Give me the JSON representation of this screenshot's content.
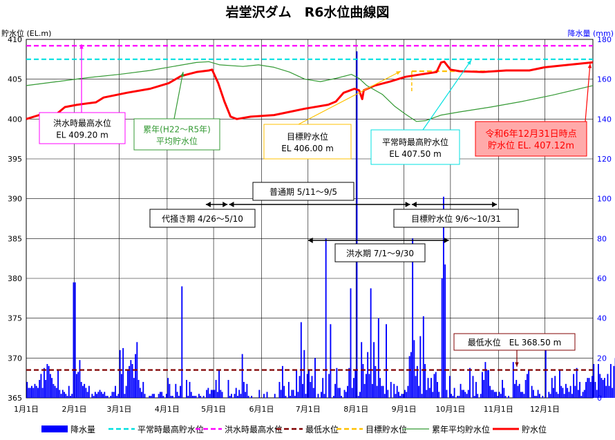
{
  "chart_data": {
    "type": "line",
    "title": "岩堂沢ダム　R6水位曲線図",
    "ylabel_left": "貯水位 (EL.m)",
    "ylabel_right": "降水量 (mm)",
    "ylim_left": [
      365,
      410
    ],
    "ylim_right": [
      0,
      180
    ],
    "yticks_left": [
      "410",
      "405",
      "400",
      "395",
      "390",
      "385",
      "380",
      "375",
      "370",
      "365"
    ],
    "yticks_right": [
      "180",
      "160",
      "140",
      "120",
      "100",
      "80",
      "60",
      "40",
      "20",
      "0"
    ],
    "month_labels": [
      "1月1日",
      "2月1日",
      "3月1日",
      "4月1日",
      "5月1日",
      "6月1日",
      "7月1日",
      "8月1日",
      "9月1日",
      "10月1日",
      "11月1日",
      "12月1日"
    ],
    "month_start_days": [
      0,
      31,
      60,
      91,
      121,
      152,
      182,
      213,
      244,
      274,
      305,
      335
    ],
    "total_days": 366,
    "reference_lines": [
      {
        "name": "平常時最高貯水位",
        "value": 407.5,
        "color": "#00e0e0"
      },
      {
        "name": "洪水時最高水位",
        "value": 409.2,
        "color": "#ff00ff"
      },
      {
        "name": "最低水位",
        "value": 368.5,
        "color": "#800000"
      }
    ],
    "target_level": {
      "name": "目標貯水位",
      "value": 406.0,
      "start_day": 249,
      "end_day": 304,
      "color": "#ffc000"
    },
    "series": [
      {
        "name": "貯水位",
        "color": "#ff0000",
        "points": [
          [
            0,
            400
          ],
          [
            10,
            400.6
          ],
          [
            20,
            400.7
          ],
          [
            25,
            401.5
          ],
          [
            33,
            401.8
          ],
          [
            45,
            402.1
          ],
          [
            50,
            402.7
          ],
          [
            65,
            403.3
          ],
          [
            80,
            403.8
          ],
          [
            92,
            404.5
          ],
          [
            100,
            405.4
          ],
          [
            110,
            405.9
          ],
          [
            118,
            406.1
          ],
          [
            120,
            406.2
          ],
          [
            124,
            404.5
          ],
          [
            128,
            402.2
          ],
          [
            132,
            400.3
          ],
          [
            136,
            400.0
          ],
          [
            145,
            400.3
          ],
          [
            160,
            400.5
          ],
          [
            170,
            400.9
          ],
          [
            180,
            401.3
          ],
          [
            195,
            401.8
          ],
          [
            200,
            402.2
          ],
          [
            205,
            403.3
          ],
          [
            212,
            403.8
          ],
          [
            215,
            403.6
          ],
          [
            217,
            402.5
          ],
          [
            218,
            403.6
          ],
          [
            225,
            404.2
          ],
          [
            235,
            404.7
          ],
          [
            245,
            405.3
          ],
          [
            255,
            405.6
          ],
          [
            265,
            405.9
          ],
          [
            268,
            407.1
          ],
          [
            270,
            407.2
          ],
          [
            274,
            406.2
          ],
          [
            280,
            406.0
          ],
          [
            295,
            405.9
          ],
          [
            310,
            406.1
          ],
          [
            325,
            406.1
          ],
          [
            335,
            406.5
          ],
          [
            350,
            406.8
          ],
          [
            366,
            407.12
          ]
        ]
      },
      {
        "name": "累年平均貯水位",
        "color": "#339933",
        "points": [
          [
            0,
            404.2
          ],
          [
            20,
            404.7
          ],
          [
            40,
            405.2
          ],
          [
            60,
            405.6
          ],
          [
            80,
            406.1
          ],
          [
            95,
            406.6
          ],
          [
            110,
            407.1
          ],
          [
            118,
            407.2
          ],
          [
            125,
            406.8
          ],
          [
            140,
            406.6
          ],
          [
            150,
            406.8
          ],
          [
            160,
            406.5
          ],
          [
            170,
            405.9
          ],
          [
            180,
            405.0
          ],
          [
            190,
            404.7
          ],
          [
            200,
            405.1
          ],
          [
            210,
            405.6
          ],
          [
            215,
            405.1
          ],
          [
            220,
            404.2
          ],
          [
            230,
            403.1
          ],
          [
            238,
            401.6
          ],
          [
            245,
            400.6
          ],
          [
            252,
            399.7
          ],
          [
            258,
            399.8
          ],
          [
            268,
            400.5
          ],
          [
            280,
            400.9
          ],
          [
            300,
            401.5
          ],
          [
            320,
            402.2
          ],
          [
            340,
            403.0
          ],
          [
            366,
            404.2
          ]
        ]
      }
    ],
    "rainfall": {
      "name": "降水量",
      "color": "#0000ff",
      "values": [
        8,
        5,
        5,
        6,
        5,
        7,
        6,
        5,
        9,
        12,
        5,
        15,
        9,
        17,
        16,
        12,
        10,
        7,
        6,
        5,
        14,
        4,
        2,
        4,
        3,
        2,
        1,
        6,
        1,
        2,
        58,
        10,
        12,
        13,
        19,
        8,
        6,
        7,
        5,
        3,
        6,
        0,
        2,
        1,
        3,
        2,
        3,
        4,
        3,
        2,
        3,
        1,
        1,
        0,
        1,
        3,
        3,
        6,
        1,
        2,
        12,
        12,
        10,
        2,
        6,
        14,
        16,
        19,
        17,
        10,
        22,
        28,
        9,
        5,
        3,
        8,
        2,
        0,
        0,
        1,
        1,
        2,
        2,
        0,
        0,
        2,
        3,
        3,
        1,
        0,
        2,
        10,
        7,
        1,
        1,
        0,
        7,
        3,
        1,
        6,
        0,
        0,
        0,
        9,
        1,
        8,
        3,
        1,
        1,
        1,
        0,
        2,
        1,
        0,
        1,
        0,
        4,
        5,
        2,
        4,
        4,
        4,
        9,
        3,
        14,
        4,
        3,
        0,
        0,
        0,
        9,
        1,
        2,
        0,
        2,
        5,
        1,
        4,
        2,
        22,
        8,
        3,
        7,
        1,
        0,
        1,
        0,
        0,
        0,
        0,
        4,
        0,
        0,
        2,
        0,
        3,
        0,
        0,
        0,
        0,
        2,
        0,
        0,
        8,
        4,
        16,
        6,
        1,
        0,
        8,
        1,
        4,
        4,
        1,
        14,
        3,
        11,
        38,
        7,
        24,
        2,
        12,
        14,
        8,
        11,
        5,
        20,
        0,
        2,
        0,
        3,
        10,
        2,
        0,
        0,
        12,
        3,
        0,
        1,
        7,
        15,
        5,
        5,
        1,
        0,
        4,
        3,
        6,
        15,
        37,
        5,
        10,
        14,
        5,
        1,
        3,
        28,
        17,
        7,
        12,
        23,
        12,
        55,
        7,
        28,
        16,
        6,
        40,
        10,
        6,
        6,
        2,
        23,
        4,
        0,
        8,
        0,
        7,
        2,
        6,
        3,
        1,
        2,
        2,
        4,
        3,
        6,
        21,
        23,
        80,
        29,
        11,
        16,
        6,
        31,
        2,
        41,
        17,
        4,
        10,
        5,
        10,
        3,
        12,
        13,
        8,
        3,
        0,
        4,
        0,
        0,
        4,
        0,
        11,
        2,
        1,
        5,
        0,
        1,
        1,
        7,
        4,
        4,
        3,
        2,
        4,
        15,
        0,
        11,
        1,
        8,
        2,
        0,
        2,
        13,
        9,
        18,
        14,
        14,
        6,
        4,
        4,
        3,
        3,
        1,
        3,
        2,
        9,
        5,
        1,
        0,
        1,
        0,
        0,
        18,
        7,
        9,
        6,
        7,
        3,
        3,
        2,
        9,
        12,
        14,
        0,
        6,
        4,
        1,
        1,
        4,
        2,
        0,
        1,
        0,
        0,
        0,
        3,
        2,
        10,
        5,
        11,
        3,
        2,
        14,
        6,
        5,
        2,
        7,
        5,
        3,
        6,
        2,
        12,
        6,
        15,
        4,
        8,
        1,
        3,
        4,
        8,
        10,
        10,
        8,
        11,
        17,
        8,
        4,
        17,
        12,
        10,
        9,
        10,
        6,
        12,
        6,
        17,
        5,
        16,
        20,
        9,
        6,
        4,
        18,
        23,
        10,
        18,
        17,
        10
      ]
    },
    "rain_spikes": [
      {
        "day": 31,
        "value": 58
      },
      {
        "day": 60,
        "value": 24
      },
      {
        "day": 62,
        "value": 25
      },
      {
        "day": 100,
        "value": 56
      },
      {
        "day": 193,
        "value": 80
      },
      {
        "day": 196,
        "value": 37
      },
      {
        "day": 209,
        "value": 55
      },
      {
        "day": 213,
        "value": 174
      },
      {
        "day": 232,
        "value": 37
      },
      {
        "day": 268,
        "value": 60
      },
      {
        "day": 269,
        "value": 101
      },
      {
        "day": 270,
        "value": 67
      },
      {
        "day": 335,
        "value": 30
      }
    ],
    "annotations": {
      "flood_max": {
        "line1": "洪水時最高水位",
        "line2": "EL 409.20 m"
      },
      "avg_level": {
        "line1": "累年(H22～R5年)",
        "line2": "平均貯水位"
      },
      "target": {
        "line1": "目標貯水位",
        "line2": "EL 406.00 m"
      },
      "normal_max": {
        "line1": "平常時最高貯水位",
        "line2": "EL 407.50 m"
      },
      "current": {
        "line1": "令和6年12月31日時点",
        "line2": "貯水位 EL. 407.12m"
      },
      "min_level": {
        "line1": "最低水位　EL 368.50 m"
      }
    },
    "periods": [
      {
        "name": "普通期 5/11～9/5",
        "start_day": 131,
        "end_day": 248
      },
      {
        "name": "代掻き期 4/26～5/10",
        "start_day": 116,
        "end_day": 130
      },
      {
        "name": "目標貯水位 9/6～10/31",
        "start_day": 249,
        "end_day": 304
      },
      {
        "name": "洪水期 7/1～9/30",
        "start_day": 182,
        "end_day": 273
      }
    ],
    "legend": [
      {
        "label": "降水量",
        "kind": "bar",
        "color": "#0000ff"
      },
      {
        "label": "平常時最高貯水位",
        "kind": "dash",
        "color": "#00e0e0"
      },
      {
        "label": "洪水時最高水位",
        "kind": "dash",
        "color": "#ff00ff"
      },
      {
        "label": "最低水位",
        "kind": "dash",
        "color": "#800000"
      },
      {
        "label": "目標貯水位",
        "kind": "dash",
        "color": "#ffc000"
      },
      {
        "label": "累年平均貯水位",
        "kind": "line",
        "color": "#339933"
      },
      {
        "label": "貯水位",
        "kind": "thick",
        "color": "#ff0000"
      }
    ]
  }
}
